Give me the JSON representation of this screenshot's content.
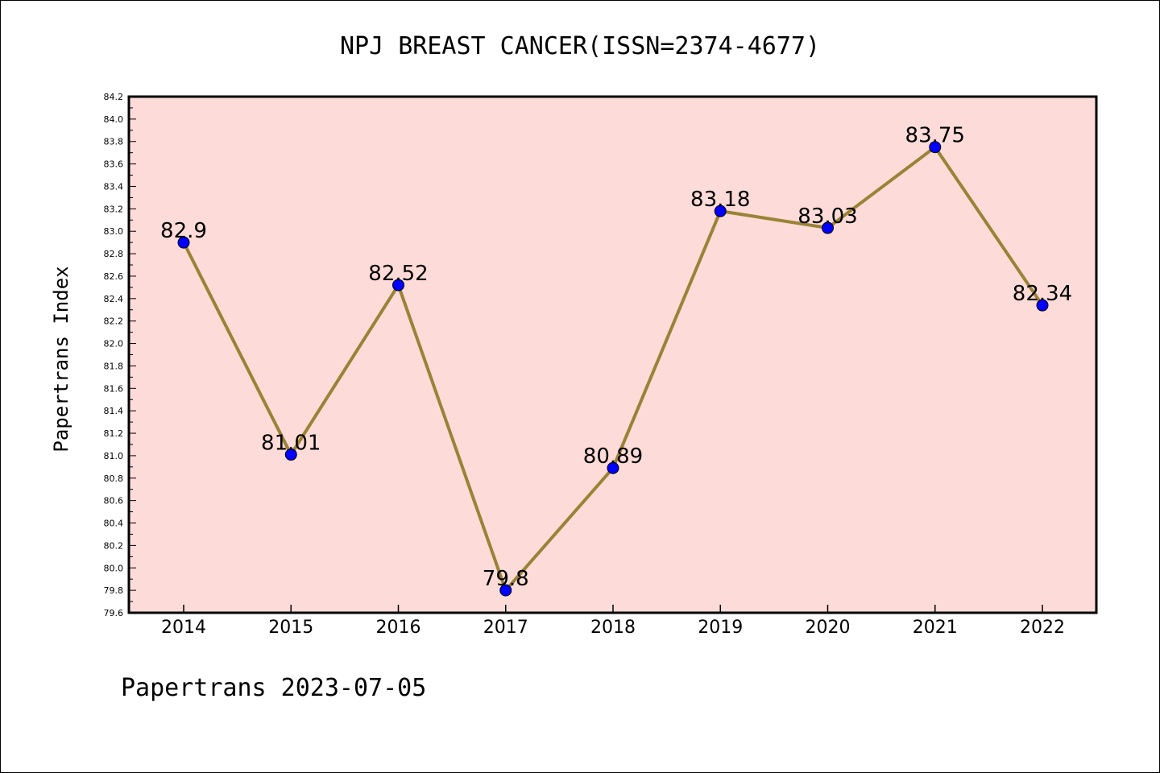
{
  "chart_data": {
    "type": "line",
    "title": "NPJ BREAST CANCER(ISSN=2374-4677)",
    "xlabel": "",
    "ylabel": "Papertrans Index",
    "categories": [
      "2014",
      "2015",
      "2016",
      "2017",
      "2018",
      "2019",
      "2020",
      "2021",
      "2022"
    ],
    "values": [
      82.9,
      81.01,
      82.52,
      79.8,
      80.89,
      83.18,
      83.03,
      83.75,
      82.34
    ],
    "data_labels": [
      "82.9",
      "81.01",
      "82.52",
      "79.8",
      "80.89",
      "83.18",
      "83.03",
      "83.75",
      "82.34"
    ],
    "ylim": [
      79.6,
      84.2
    ],
    "yticks": [
      "79.6",
      "79.8",
      "80.0",
      "80.2",
      "80.4",
      "80.6",
      "80.8",
      "81.0",
      "81.2",
      "81.4",
      "81.6",
      "81.8",
      "82.0",
      "82.2",
      "82.4",
      "82.6",
      "82.8",
      "83.0",
      "83.2",
      "83.4",
      "83.6",
      "83.8",
      "84.0",
      "84.2"
    ],
    "grid": false,
    "legend": "none",
    "colors": {
      "plot_background": "#fddbd8",
      "line": "#9a8236",
      "marker": "#0000ff"
    }
  },
  "footer": {
    "text": "Papertrans 2023-07-05"
  }
}
